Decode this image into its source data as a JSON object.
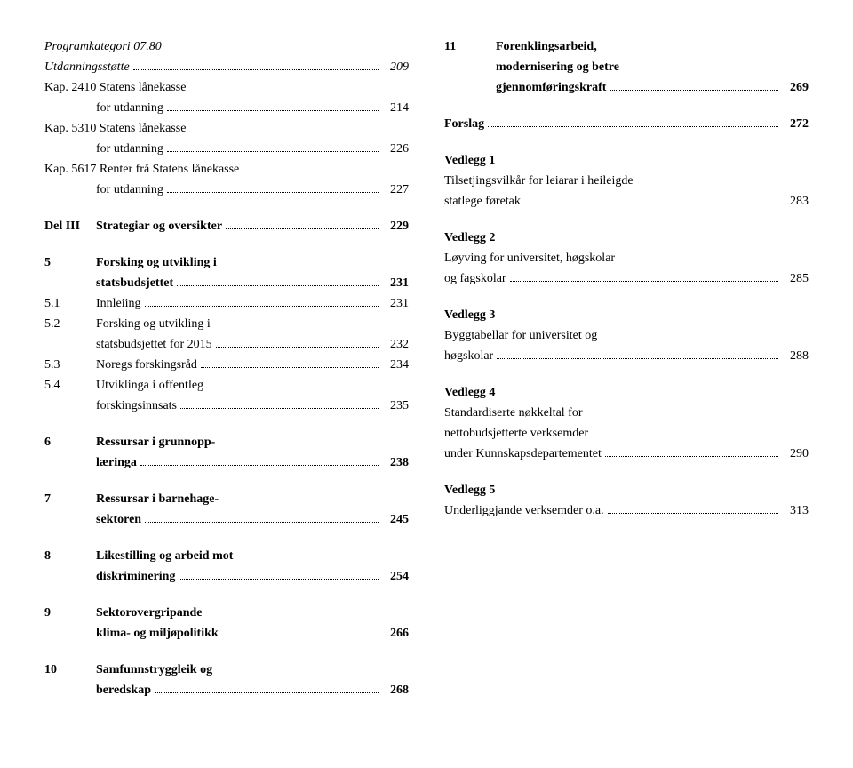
{
  "left": {
    "items": [
      {
        "label": "",
        "text": "Programkategori 07.80",
        "page": "",
        "italic": true,
        "continuation": false,
        "noDots": true
      },
      {
        "label": "",
        "text": "Utdanningsstøtte",
        "page": "209",
        "italic": true,
        "continuation": false
      },
      {
        "label": "",
        "text": "Kap. 2410 Statens lånekasse",
        "page": "",
        "continuation": false,
        "noDots": true
      },
      {
        "label": "",
        "text": "for utdanning",
        "page": "214",
        "continuation": true
      },
      {
        "label": "",
        "text": "Kap. 5310 Statens lånekasse",
        "page": "",
        "continuation": false,
        "noDots": true
      },
      {
        "label": "",
        "text": "for utdanning",
        "page": "226",
        "continuation": true
      },
      {
        "label": "",
        "text": "Kap. 5617 Renter frå Statens lånekasse",
        "page": "",
        "continuation": false,
        "noDots": true
      },
      {
        "label": "",
        "text": "for utdanning",
        "page": "227",
        "continuation": true
      },
      {
        "gap": true
      },
      {
        "label": "Del III",
        "text": "Strategiar og oversikter",
        "page": "229",
        "bold": true
      },
      {
        "gap": true
      },
      {
        "label": "5",
        "text": "Forsking og utvikling i",
        "page": "",
        "bold": true,
        "noDots": true
      },
      {
        "label": "",
        "text": "statsbudsjettet",
        "page": "231",
        "bold": true,
        "continuation": true
      },
      {
        "label": "5.1",
        "text": "Innleiing",
        "page": "231"
      },
      {
        "label": "5.2",
        "text": "Forsking og utvikling i",
        "page": "",
        "noDots": true
      },
      {
        "label": "",
        "text": "statsbudsjettet for 2015",
        "page": "232",
        "continuation": true
      },
      {
        "label": "5.3",
        "text": "Noregs forskingsråd",
        "page": "234"
      },
      {
        "label": "5.4",
        "text": "Utviklinga i offentleg",
        "page": "",
        "noDots": true
      },
      {
        "label": "",
        "text": "forskingsinnsats",
        "page": "235",
        "continuation": true
      },
      {
        "gap": true
      },
      {
        "label": "6",
        "text": "Ressursar i grunnopp-",
        "page": "",
        "bold": true,
        "noDots": true
      },
      {
        "label": "",
        "text": "læringa",
        "page": "238",
        "bold": true,
        "continuation": true
      },
      {
        "gap": true
      },
      {
        "label": "7",
        "text": "Ressursar i barnehage-",
        "page": "",
        "bold": true,
        "noDots": true
      },
      {
        "label": "",
        "text": "sektoren",
        "page": "245",
        "bold": true,
        "continuation": true
      },
      {
        "gap": true
      },
      {
        "label": "8",
        "text": "Likestilling og arbeid mot",
        "page": "",
        "bold": true,
        "noDots": true
      },
      {
        "label": "",
        "text": "diskriminering",
        "page": "254",
        "bold": true,
        "continuation": true
      },
      {
        "gap": true
      },
      {
        "label": "9",
        "text": "Sektorovergripande",
        "page": "",
        "bold": true,
        "noDots": true
      },
      {
        "label": "",
        "text": "klima- og miljøpolitikk",
        "page": "266",
        "bold": true,
        "continuation": true
      },
      {
        "gap": true
      },
      {
        "label": "10",
        "text": "Samfunnstryggleik og",
        "page": "",
        "bold": true,
        "noDots": true
      },
      {
        "label": "",
        "text": "beredskap",
        "page": "268",
        "bold": true,
        "continuation": true
      }
    ]
  },
  "right": {
    "items": [
      {
        "label": "11",
        "text": "Forenklingsarbeid,",
        "page": "",
        "bold": true,
        "noDots": true
      },
      {
        "label": "",
        "text": "modernisering og betre",
        "page": "",
        "bold": true,
        "continuation": true,
        "noDots": true
      },
      {
        "label": "",
        "text": "gjennomføringskraft",
        "page": "269",
        "bold": true,
        "continuation": true
      },
      {
        "gap": true
      },
      {
        "label": "Forslag",
        "text": "",
        "page": "272",
        "bold": true,
        "labelOnly": true
      },
      {
        "gap": true
      },
      {
        "label": "",
        "text": "Vedlegg 1",
        "page": "",
        "bold": true,
        "noDots": true
      },
      {
        "label": "",
        "text": "Tilsetjingsvilkår for leiarar i heileigde",
        "page": "",
        "noDots": true
      },
      {
        "label": "",
        "text": "statlege føretak",
        "page": "283"
      },
      {
        "gap": true
      },
      {
        "label": "",
        "text": "Vedlegg 2",
        "page": "",
        "bold": true,
        "noDots": true
      },
      {
        "label": "",
        "text": "Løyving for universitet, høgskolar",
        "page": "",
        "noDots": true
      },
      {
        "label": "",
        "text": "og fagskolar",
        "page": "285"
      },
      {
        "gap": true
      },
      {
        "label": "",
        "text": "Vedlegg 3",
        "page": "",
        "bold": true,
        "noDots": true
      },
      {
        "label": "",
        "text": "Byggtabellar for universitet og",
        "page": "",
        "noDots": true
      },
      {
        "label": "",
        "text": "høgskolar",
        "page": "288"
      },
      {
        "gap": true
      },
      {
        "label": "",
        "text": "Vedlegg 4",
        "page": "",
        "bold": true,
        "noDots": true
      },
      {
        "label": "",
        "text": "Standardiserte nøkkeltal for",
        "page": "",
        "noDots": true
      },
      {
        "label": "",
        "text": "nettobudsjetterte verksemder",
        "page": "",
        "noDots": true
      },
      {
        "label": "",
        "text": "under Kunnskapsdepartementet",
        "page": "290"
      },
      {
        "gap": true
      },
      {
        "label": "",
        "text": "Vedlegg 5",
        "page": "",
        "bold": true,
        "noDots": true
      },
      {
        "label": "",
        "text": "Underliggjande verksemder o.a. ",
        "page": "313"
      }
    ]
  }
}
